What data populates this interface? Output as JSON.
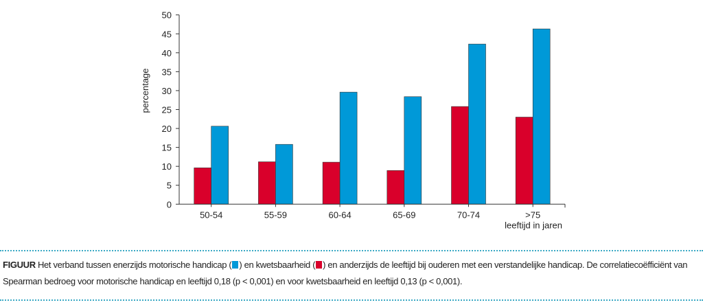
{
  "chart_data": {
    "type": "bar",
    "categories": [
      "50-54",
      "55-59",
      "60-64",
      "65-69",
      "70-74",
      ">75"
    ],
    "series": [
      {
        "name": "kwetsbaarheid",
        "color": "#d9002b",
        "values": [
          9.6,
          11.2,
          11.1,
          8.9,
          25.8,
          23.0
        ]
      },
      {
        "name": "motorische handicap",
        "color": "#0099d8",
        "values": [
          20.6,
          15.8,
          29.6,
          28.4,
          42.3,
          46.3
        ]
      }
    ],
    "ylabel": "percentage",
    "xlabel": "leeftijd in jaren",
    "ylim": [
      0,
      50
    ],
    "yticks": [
      0,
      5,
      10,
      15,
      20,
      25,
      30,
      35,
      40,
      45,
      50
    ],
    "grid": false
  },
  "caption": {
    "label": "FIGUUR",
    "part1": " Het verband tussen enerzijds motorische handicap (",
    "part2": ") en kwetsbaarheid (",
    "part3": ") en anderzijds de leeftijd bij ouderen met een verstandelijke handicap. De correlatiecoëfficiënt van Spearman bedroeg voor motorische handicap en leeftijd 0,18 (p < 0,001) en voor kwetsbaarheid en leeftijd 0,13 (p < 0,001)."
  }
}
